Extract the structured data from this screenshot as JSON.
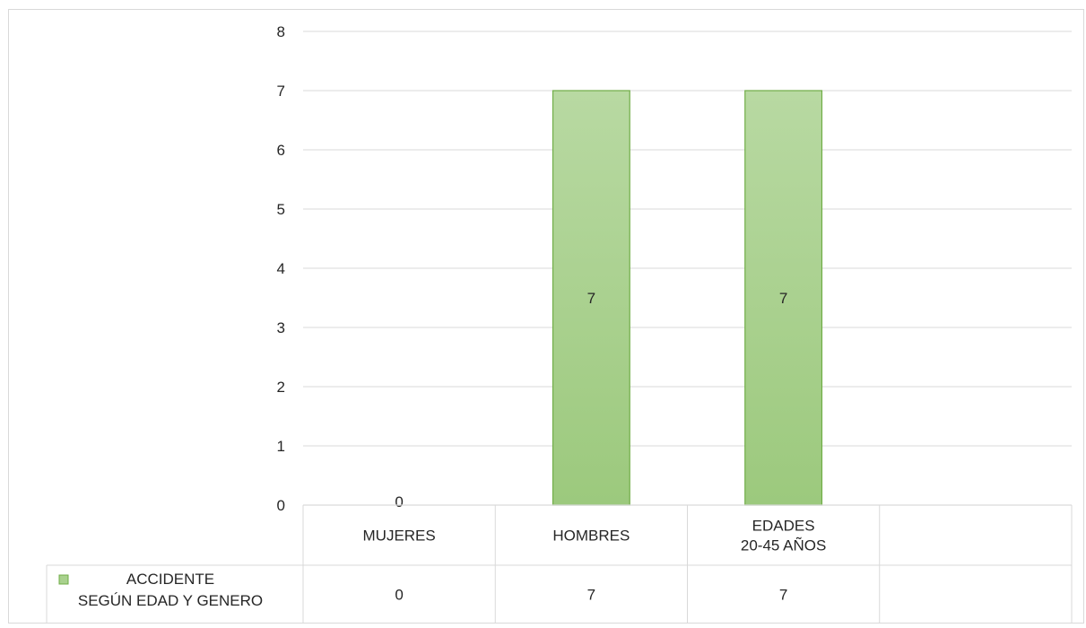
{
  "chart_data": {
    "type": "bar",
    "categories": [
      [
        "MUJERES"
      ],
      [
        "HOMBRES"
      ],
      [
        "EDADES",
        "20-45 AÑOS"
      ],
      [
        ""
      ]
    ],
    "series": [
      {
        "name_lines": [
          "ACCIDENTE",
          "SEGÚN EDAD Y GENERO"
        ],
        "values": [
          0,
          7,
          7,
          null
        ],
        "color": "#a9d18e",
        "border_color": "#70ad47"
      }
    ],
    "data_labels": [
      "0",
      "7",
      "7",
      ""
    ],
    "table_values": [
      "0",
      "7",
      "7",
      ""
    ],
    "ylim": [
      0,
      8
    ],
    "y_ticks": [
      0,
      1,
      2,
      3,
      4,
      5,
      6,
      7,
      8
    ],
    "grid": true,
    "legend_placement": "data-table"
  }
}
